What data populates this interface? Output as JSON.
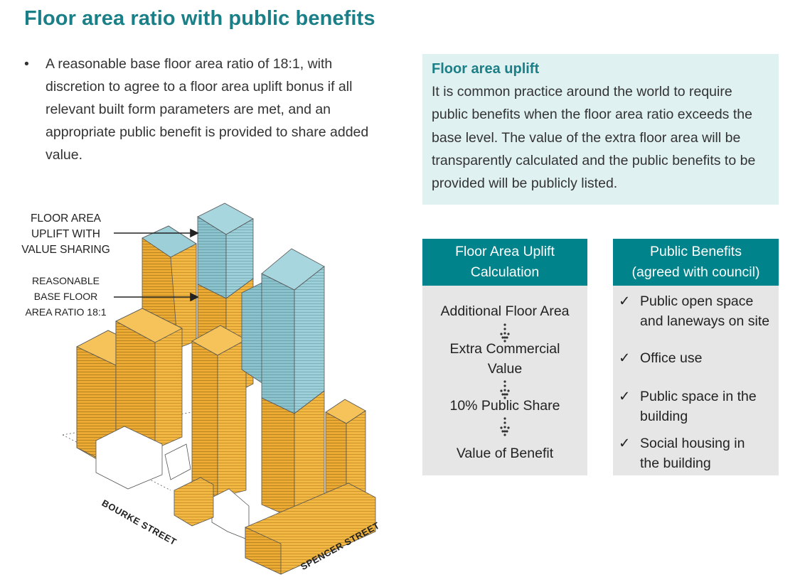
{
  "title": "Floor area ratio with public benefits",
  "bullet": {
    "marker": "•",
    "text": "A reasonable base floor area ratio of 18:1, with discretion to agree to a floor area uplift bonus if all relevant built form parameters are met, and an appropriate public benefit is provided to share added value."
  },
  "uplift_box": {
    "heading": "Floor area uplift",
    "body": "It is common practice around the world to require public benefits when the floor area ratio exceeds the base level. The value of the extra floor area will be transparently calculated and the public benefits to be provided will be publicly listed."
  },
  "calculation": {
    "header_line1": "Floor Area Uplift",
    "header_line2": "Calculation",
    "steps": [
      "Additional Floor Area",
      "Extra Commercial",
      "Value",
      "10% Public Share",
      "Value of Benefit"
    ]
  },
  "benefits": {
    "header_line1": "Public Benefits",
    "header_line2": "(agreed with council)",
    "tick": "✓",
    "items": [
      {
        "line1": "Public open space",
        "line2": "and laneways on site"
      },
      {
        "line1": "Office use",
        "line2": ""
      },
      {
        "line1": "Public space in the",
        "line2": "building"
      },
      {
        "line1": "Social housing in",
        "line2": "the building"
      }
    ]
  },
  "illustration": {
    "label_uplift": [
      "FLOOR AREA",
      "UPLIFT WITH",
      "VALUE SHARING"
    ],
    "label_base": [
      "REASONABLE",
      "BASE FLOOR",
      "AREA RATIO 18:1"
    ],
    "street_bourke": "BOURKE STREET",
    "street_spencer": "SPENCER STREET",
    "colors": {
      "base": "#f3b843",
      "uplift": "#9ccfd8",
      "outline": "#555555"
    }
  },
  "colors": {
    "teal": "#1a7f86",
    "header_bg": "#00838a",
    "panel_bg": "#e6e6e6",
    "info_bg": "#e0f1f2"
  }
}
